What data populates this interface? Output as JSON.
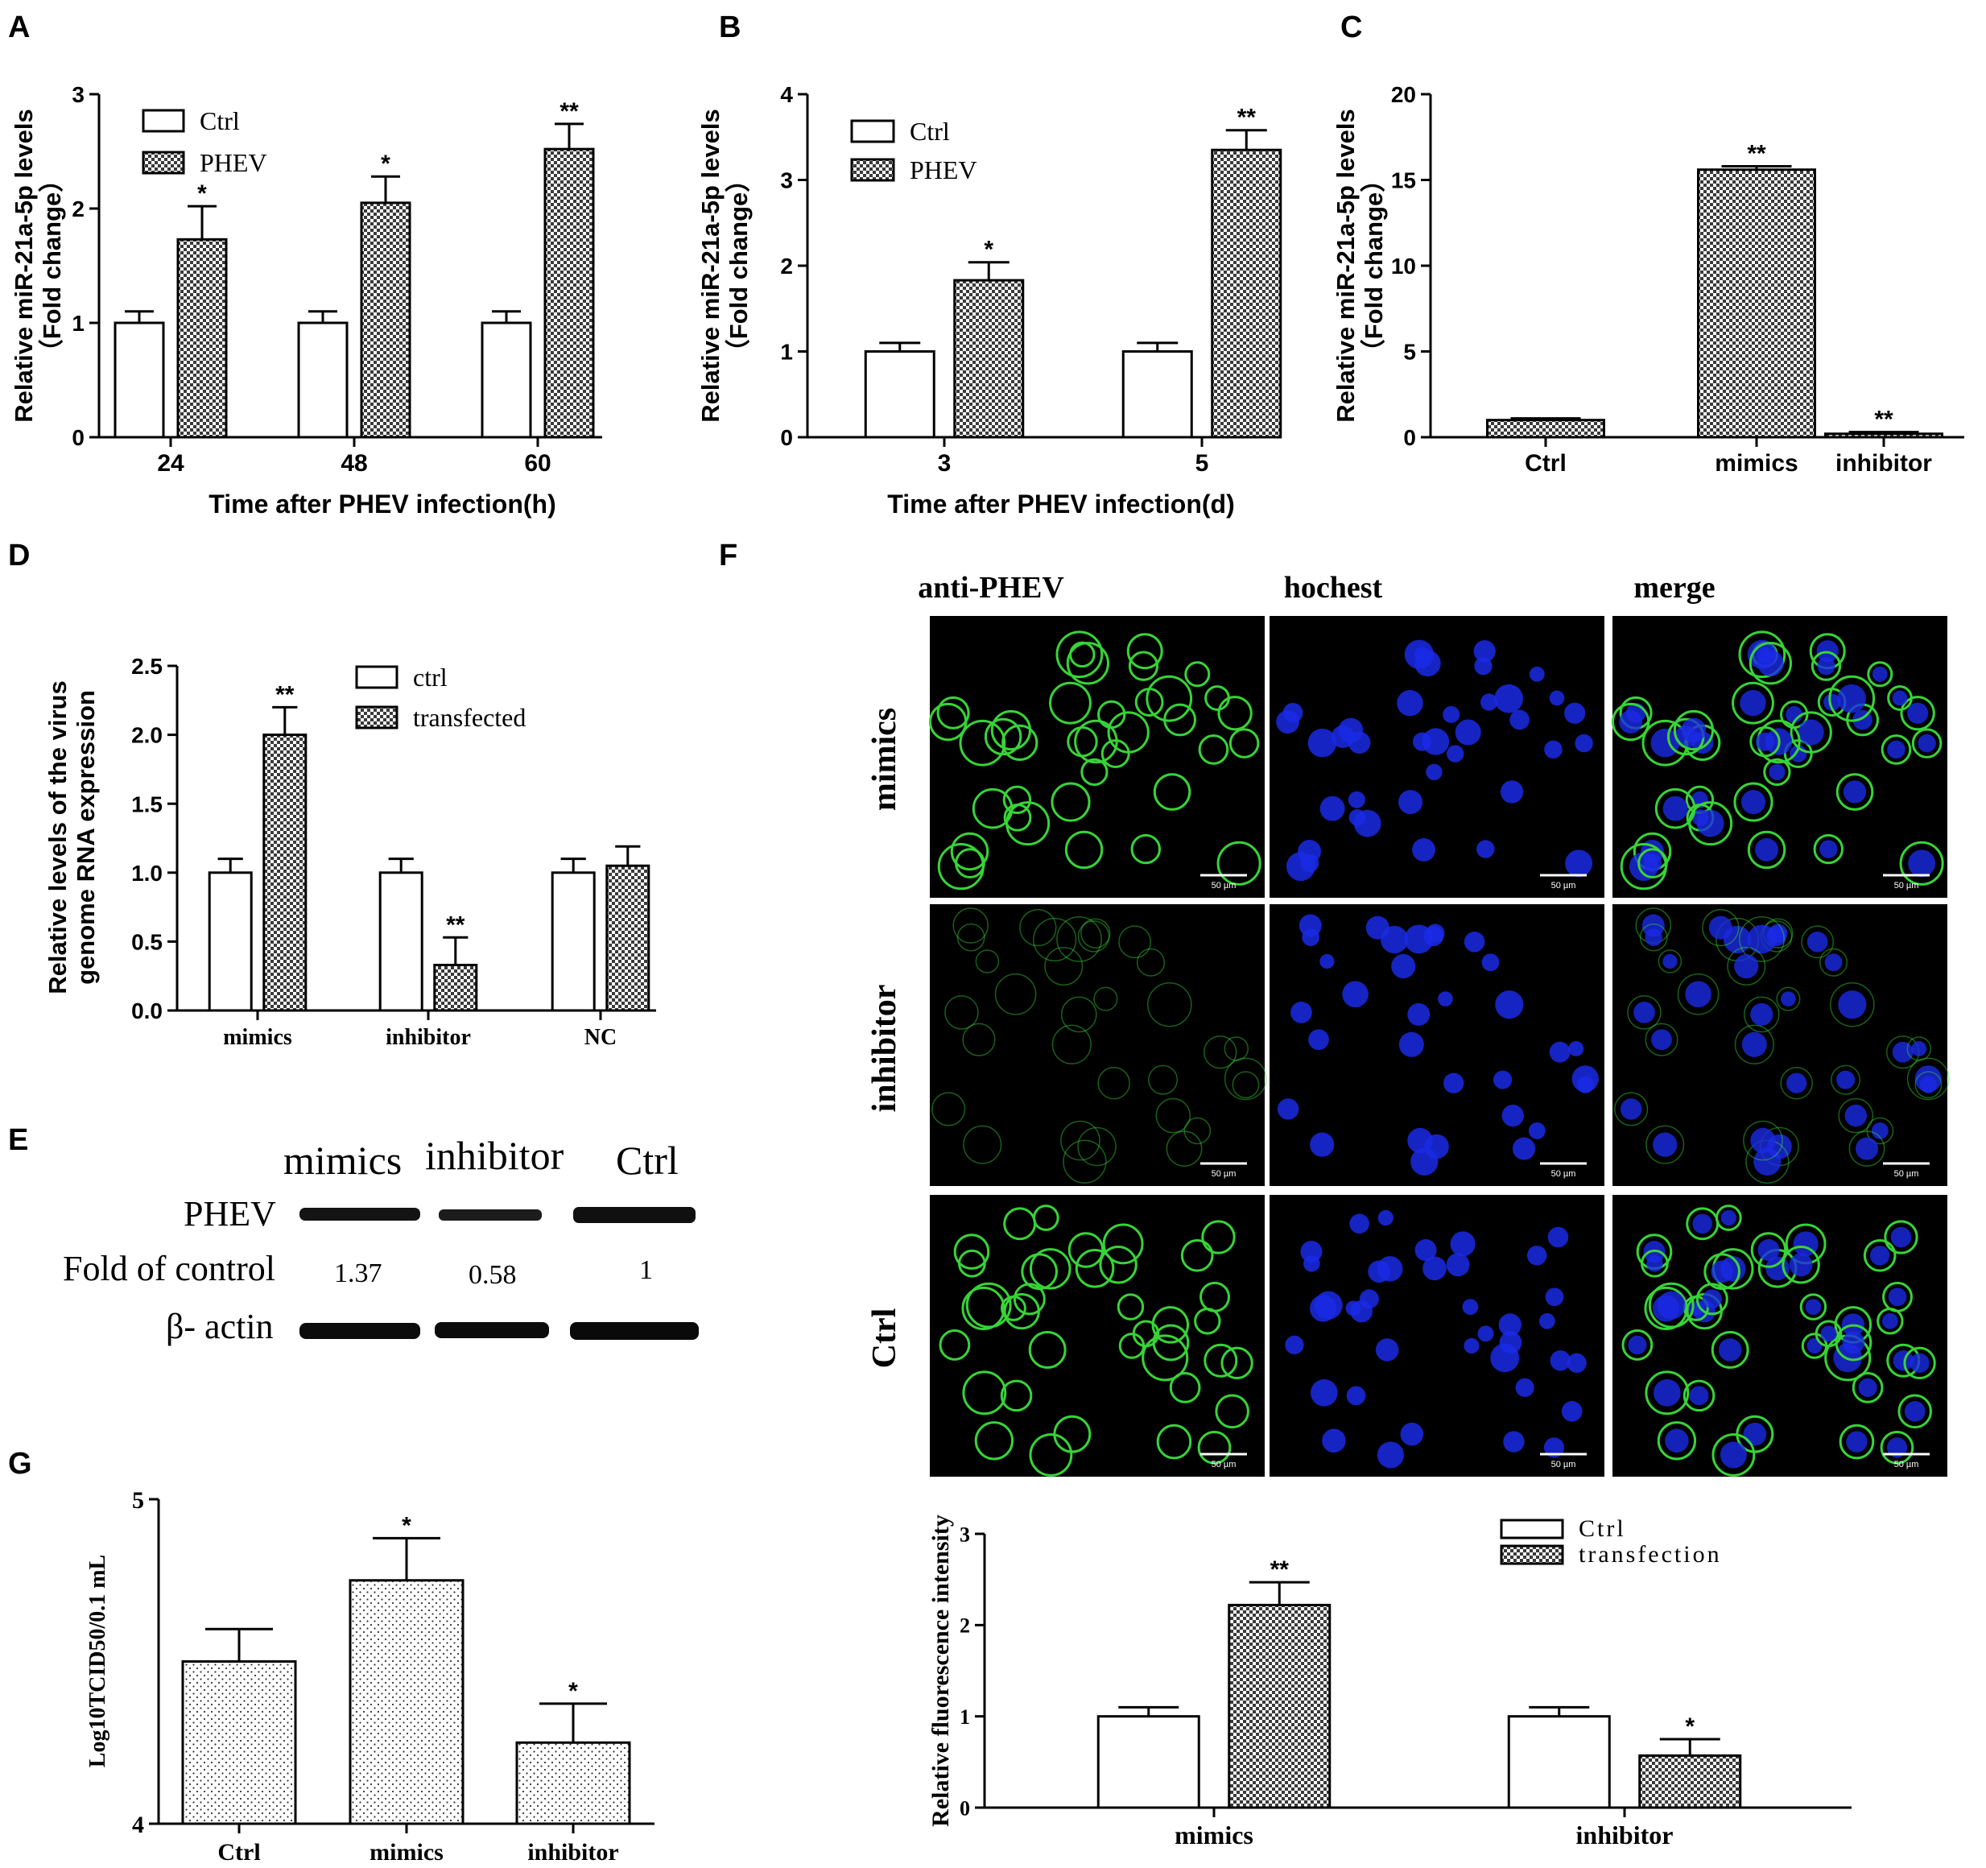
{
  "colors": {
    "axis": "#000000",
    "bar_ctrl": "#ffffff",
    "bar_hatch": "#000000",
    "green": "#37d437",
    "blue": "#1a2ae6"
  },
  "panels": {
    "A": "A",
    "B": "B",
    "C": "C",
    "D": "D",
    "E": "E",
    "F": "F",
    "G": "G"
  },
  "chart_data": [
    {
      "panel": "A",
      "type": "bar",
      "ylabel": "Relative miR-21a-5p levels",
      "ylabel2": "（Fold change）",
      "xlabel": "Time after PHEV infection(h)",
      "categories": [
        "24",
        "48",
        "60"
      ],
      "ylim": [
        0,
        3
      ],
      "yticks": [
        "0",
        "1",
        "2",
        "3"
      ],
      "series": [
        {
          "name": "Ctrl",
          "values": [
            1.0,
            1.0,
            1.0
          ],
          "errors": [
            0.1,
            0.1,
            0.1
          ],
          "sig": [
            "",
            "",
            ""
          ]
        },
        {
          "name": "PHEV",
          "values": [
            1.73,
            2.05,
            2.52
          ],
          "errors": [
            0.29,
            0.23,
            0.22
          ],
          "sig": [
            "*",
            "*",
            "**"
          ]
        }
      ],
      "legend": "top-left"
    },
    {
      "panel": "B",
      "type": "bar",
      "ylabel": "Relative miR-21a-5p levels",
      "ylabel2": "（Fold change）",
      "xlabel": "Time after PHEV infection(d)",
      "categories": [
        "3",
        "5"
      ],
      "ylim": [
        0,
        4
      ],
      "yticks": [
        "0",
        "1",
        "2",
        "3",
        "4"
      ],
      "series": [
        {
          "name": "Ctrl",
          "values": [
            1.0,
            1.0
          ],
          "errors": [
            0.1,
            0.1
          ],
          "sig": [
            "",
            ""
          ]
        },
        {
          "name": "PHEV",
          "values": [
            1.83,
            3.35
          ],
          "errors": [
            0.21,
            0.23
          ],
          "sig": [
            "*",
            "**"
          ]
        }
      ],
      "legend": "top-left"
    },
    {
      "panel": "C",
      "type": "bar",
      "ylabel": "Relative miR-21a-5p levels",
      "ylabel2": "（Fold change）",
      "xlabel": "",
      "categories": [
        "Ctrl",
        "mimics",
        "inhibitor"
      ],
      "ylim": [
        0,
        20
      ],
      "yticks": [
        "0",
        "5",
        "10",
        "15",
        "20"
      ],
      "values": [
        1.0,
        15.6,
        0.2
      ],
      "errors": [
        0.1,
        0.2,
        0.1
      ],
      "fills": [
        "hatch",
        "hatch",
        "hatch"
      ],
      "sig": [
        "",
        "**",
        "**"
      ]
    },
    {
      "panel": "D",
      "type": "bar",
      "ylabel": "Relative levels of the virus",
      "ylabel2": "genome RNA expression",
      "xlabel": "",
      "categories": [
        "mimics",
        "inhibitor",
        "NC"
      ],
      "ylim": [
        0,
        2.5
      ],
      "yticks": [
        "0.0",
        "0.5",
        "1.0",
        "1.5",
        "2.0",
        "2.5"
      ],
      "series": [
        {
          "name": "ctrl",
          "values": [
            1.0,
            1.0,
            1.0
          ],
          "errors": [
            0.1,
            0.1,
            0.1
          ],
          "sig": [
            "",
            "",
            ""
          ]
        },
        {
          "name": "transfected",
          "values": [
            2.0,
            0.33,
            1.05
          ],
          "errors": [
            0.2,
            0.2,
            0.14
          ],
          "sig": [
            "**",
            "**",
            ""
          ]
        }
      ],
      "legend": "top-right"
    },
    {
      "panel": "F",
      "type": "bar",
      "ylabel": "Relative fluorescence intensity",
      "xlabel": "",
      "categories": [
        "mimics",
        "inhibitor"
      ],
      "ylim": [
        0,
        3
      ],
      "yticks": [
        "0",
        "1",
        "2",
        "3"
      ],
      "series": [
        {
          "name": "Ctrl",
          "values": [
            1.0,
            1.0
          ],
          "errors": [
            0.1,
            0.1
          ],
          "sig": [
            "",
            ""
          ]
        },
        {
          "name": "transfection",
          "values": [
            2.22,
            0.57
          ],
          "errors": [
            0.25,
            0.18
          ],
          "sig": [
            "**",
            "*"
          ]
        }
      ],
      "legend": "top-right"
    },
    {
      "panel": "G",
      "type": "bar",
      "ylabel": "Log10TCID50/0.1 mL",
      "xlabel": "",
      "categories": [
        "Ctrl",
        "mimics",
        "inhibitor"
      ],
      "ylim": [
        4,
        5
      ],
      "yticks": [
        "4",
        "5"
      ],
      "values": [
        4.5,
        4.75,
        4.25
      ],
      "errors": [
        0.1,
        0.13,
        0.12
      ],
      "fills": [
        "dots",
        "dots",
        "dots"
      ],
      "sig": [
        "",
        "*",
        "*"
      ]
    }
  ],
  "western": {
    "columns": [
      "mimics",
      "inhibitor",
      "Ctrl"
    ],
    "row1_label": "PHEV",
    "fold_label": "Fold of control",
    "fold_values": [
      "1.37",
      "0.58",
      "1"
    ],
    "row2_label": "β- actin"
  },
  "microscopy": {
    "columns": [
      "anti-PHEV",
      "hochest",
      "merge"
    ],
    "rows": [
      "mimics",
      "inhibitor",
      "Ctrl"
    ],
    "scale_bar": "50 µm"
  }
}
